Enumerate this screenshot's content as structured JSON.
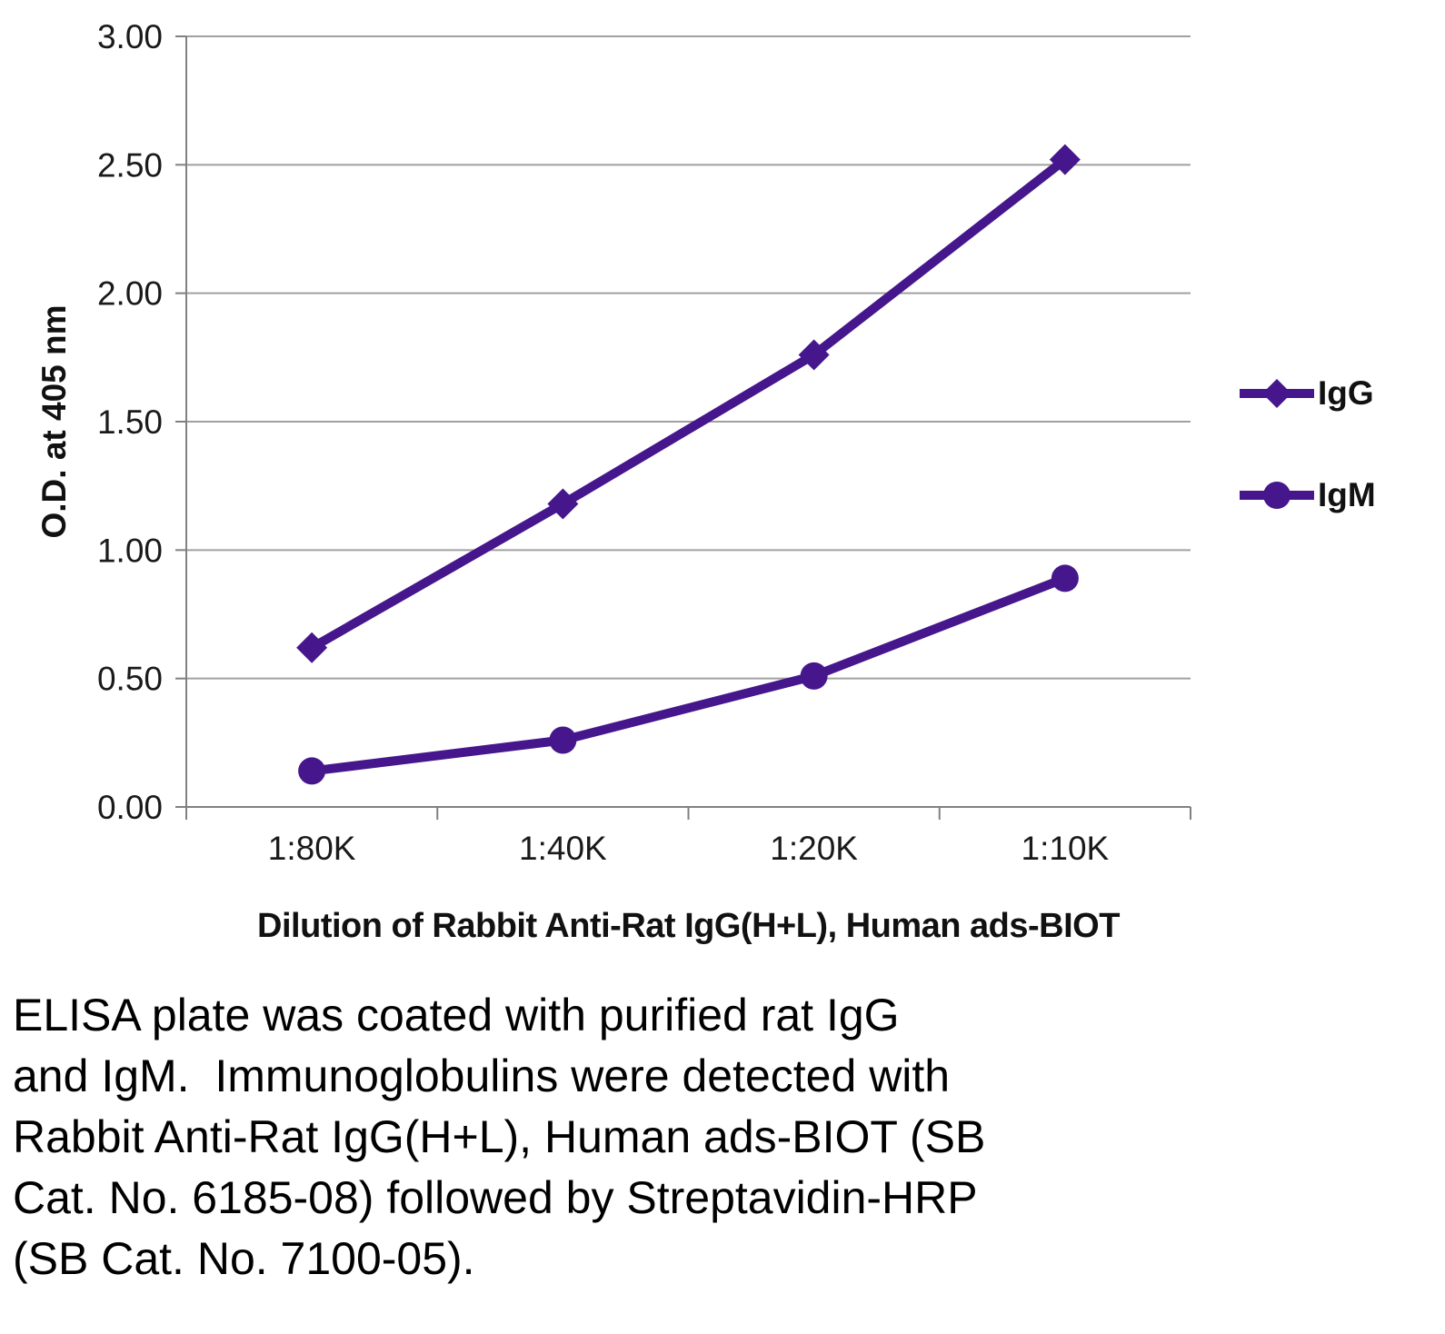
{
  "chart_data": {
    "type": "line",
    "categories": [
      "1:80K",
      "1:40K",
      "1:20K",
      "1:10K"
    ],
    "series": [
      {
        "name": "IgG",
        "marker": "diamond",
        "values": [
          0.62,
          1.18,
          1.76,
          2.52
        ]
      },
      {
        "name": "IgM",
        "marker": "circle",
        "values": [
          0.14,
          0.26,
          0.51,
          0.89
        ]
      }
    ],
    "title": "",
    "xlabel": "Dilution of Rabbit Anti-Rat IgG(H+L), Human ads-BIOT",
    "ylabel": "O.D. at 405 nm",
    "ylim": [
      0,
      3
    ],
    "ytick_step": 0.5,
    "ytick_labels": [
      "0.00",
      "0.50",
      "1.00",
      "1.50",
      "2.00",
      "2.50",
      "3.00"
    ],
    "grid": true,
    "legend_position": "right"
  },
  "caption": {
    "lines": [
      "ELISA plate was coated with purified rat IgG",
      "and IgM.  Immunoglobulins were detected with",
      "Rabbit Anti-Rat IgG(H+L), Human ads-BIOT (SB",
      "Cat. No. 6185-08) followed by Streptavidin-HRP",
      "(SB Cat. No. 7100-05)."
    ]
  },
  "colors": {
    "series": "#45168c",
    "grid": "#a0a0a0",
    "axis": "#808080",
    "text": "#1a1a1a"
  }
}
